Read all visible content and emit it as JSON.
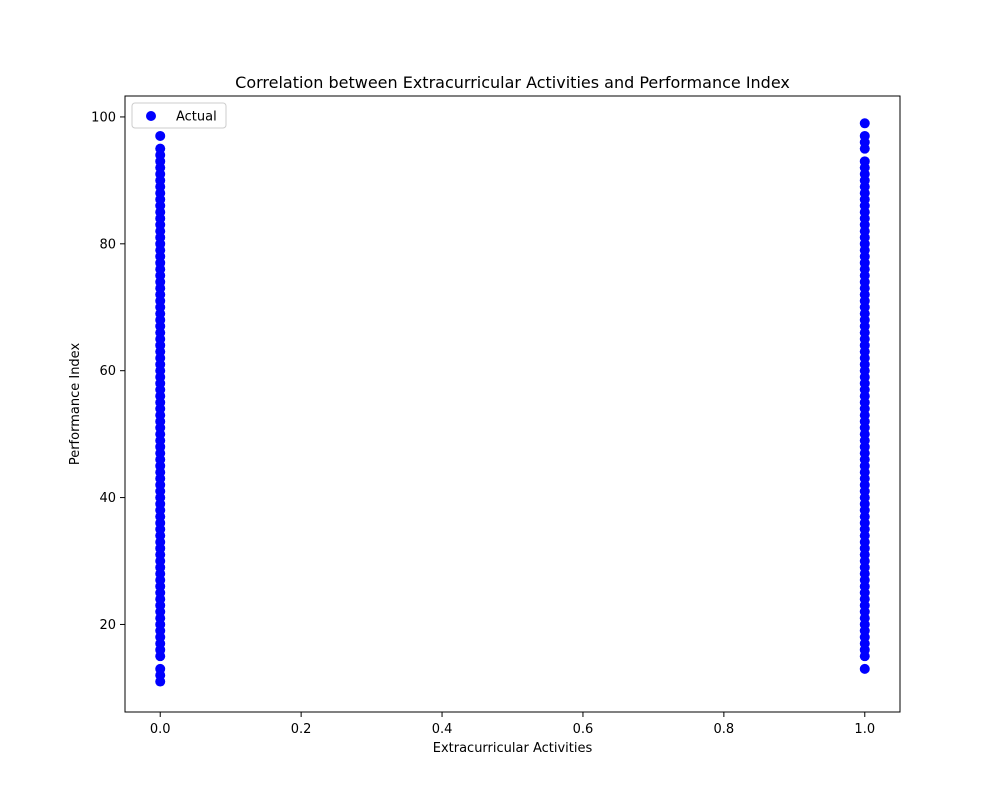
{
  "chart_data": {
    "type": "scatter",
    "title": "Correlation between Extracurricular Activities and Performance Index",
    "xlabel": "Extracurricular Activities",
    "ylabel": "Performance Index",
    "xlim": [
      -0.05,
      1.05
    ],
    "ylim": [
      6.2,
      103.3
    ],
    "xticks": [
      0.0,
      0.2,
      0.4,
      0.6,
      0.8,
      1.0
    ],
    "xtick_labels": [
      "0.0",
      "0.2",
      "0.4",
      "0.6",
      "0.8",
      "1.0"
    ],
    "yticks": [
      20,
      40,
      60,
      80,
      100
    ],
    "ytick_labels": [
      "20",
      "40",
      "60",
      "80",
      "100"
    ],
    "grid": false,
    "legend": {
      "position": "top-left",
      "entries": [
        "Actual"
      ]
    },
    "series": [
      {
        "name": "Actual",
        "color": "#0000ff",
        "points": [
          {
            "x": 0,
            "y": 11
          },
          {
            "x": 0,
            "y": 12
          },
          {
            "x": 0,
            "y": 13
          },
          {
            "x": 0,
            "y": 15
          },
          {
            "x": 0,
            "y": 16
          },
          {
            "x": 0,
            "y": 17
          },
          {
            "x": 0,
            "y": 18
          },
          {
            "x": 0,
            "y": 19
          },
          {
            "x": 0,
            "y": 20
          },
          {
            "x": 0,
            "y": 21
          },
          {
            "x": 0,
            "y": 22
          },
          {
            "x": 0,
            "y": 23
          },
          {
            "x": 0,
            "y": 24
          },
          {
            "x": 0,
            "y": 25
          },
          {
            "x": 0,
            "y": 26
          },
          {
            "x": 0,
            "y": 27
          },
          {
            "x": 0,
            "y": 28
          },
          {
            "x": 0,
            "y": 29
          },
          {
            "x": 0,
            "y": 30
          },
          {
            "x": 0,
            "y": 31
          },
          {
            "x": 0,
            "y": 32
          },
          {
            "x": 0,
            "y": 33
          },
          {
            "x": 0,
            "y": 34
          },
          {
            "x": 0,
            "y": 35
          },
          {
            "x": 0,
            "y": 36
          },
          {
            "x": 0,
            "y": 37
          },
          {
            "x": 0,
            "y": 38
          },
          {
            "x": 0,
            "y": 39
          },
          {
            "x": 0,
            "y": 40
          },
          {
            "x": 0,
            "y": 41
          },
          {
            "x": 0,
            "y": 42
          },
          {
            "x": 0,
            "y": 43
          },
          {
            "x": 0,
            "y": 44
          },
          {
            "x": 0,
            "y": 45
          },
          {
            "x": 0,
            "y": 46
          },
          {
            "x": 0,
            "y": 47
          },
          {
            "x": 0,
            "y": 48
          },
          {
            "x": 0,
            "y": 49
          },
          {
            "x": 0,
            "y": 50
          },
          {
            "x": 0,
            "y": 51
          },
          {
            "x": 0,
            "y": 52
          },
          {
            "x": 0,
            "y": 53
          },
          {
            "x": 0,
            "y": 54
          },
          {
            "x": 0,
            "y": 55
          },
          {
            "x": 0,
            "y": 56
          },
          {
            "x": 0,
            "y": 57
          },
          {
            "x": 0,
            "y": 58
          },
          {
            "x": 0,
            "y": 59
          },
          {
            "x": 0,
            "y": 60
          },
          {
            "x": 0,
            "y": 61
          },
          {
            "x": 0,
            "y": 62
          },
          {
            "x": 0,
            "y": 63
          },
          {
            "x": 0,
            "y": 64
          },
          {
            "x": 0,
            "y": 65
          },
          {
            "x": 0,
            "y": 66
          },
          {
            "x": 0,
            "y": 67
          },
          {
            "x": 0,
            "y": 68
          },
          {
            "x": 0,
            "y": 69
          },
          {
            "x": 0,
            "y": 70
          },
          {
            "x": 0,
            "y": 71
          },
          {
            "x": 0,
            "y": 72
          },
          {
            "x": 0,
            "y": 73
          },
          {
            "x": 0,
            "y": 74
          },
          {
            "x": 0,
            "y": 75
          },
          {
            "x": 0,
            "y": 76
          },
          {
            "x": 0,
            "y": 77
          },
          {
            "x": 0,
            "y": 78
          },
          {
            "x": 0,
            "y": 79
          },
          {
            "x": 0,
            "y": 80
          },
          {
            "x": 0,
            "y": 81
          },
          {
            "x": 0,
            "y": 82
          },
          {
            "x": 0,
            "y": 83
          },
          {
            "x": 0,
            "y": 84
          },
          {
            "x": 0,
            "y": 85
          },
          {
            "x": 0,
            "y": 86
          },
          {
            "x": 0,
            "y": 87
          },
          {
            "x": 0,
            "y": 88
          },
          {
            "x": 0,
            "y": 89
          },
          {
            "x": 0,
            "y": 90
          },
          {
            "x": 0,
            "y": 91
          },
          {
            "x": 0,
            "y": 92
          },
          {
            "x": 0,
            "y": 93
          },
          {
            "x": 0,
            "y": 94
          },
          {
            "x": 0,
            "y": 95
          },
          {
            "x": 0,
            "y": 97
          },
          {
            "x": 1,
            "y": 13
          },
          {
            "x": 1,
            "y": 15
          },
          {
            "x": 1,
            "y": 16
          },
          {
            "x": 1,
            "y": 17
          },
          {
            "x": 1,
            "y": 18
          },
          {
            "x": 1,
            "y": 19
          },
          {
            "x": 1,
            "y": 20
          },
          {
            "x": 1,
            "y": 21
          },
          {
            "x": 1,
            "y": 22
          },
          {
            "x": 1,
            "y": 23
          },
          {
            "x": 1,
            "y": 24
          },
          {
            "x": 1,
            "y": 25
          },
          {
            "x": 1,
            "y": 26
          },
          {
            "x": 1,
            "y": 27
          },
          {
            "x": 1,
            "y": 28
          },
          {
            "x": 1,
            "y": 29
          },
          {
            "x": 1,
            "y": 30
          },
          {
            "x": 1,
            "y": 31
          },
          {
            "x": 1,
            "y": 32
          },
          {
            "x": 1,
            "y": 33
          },
          {
            "x": 1,
            "y": 34
          },
          {
            "x": 1,
            "y": 35
          },
          {
            "x": 1,
            "y": 36
          },
          {
            "x": 1,
            "y": 37
          },
          {
            "x": 1,
            "y": 38
          },
          {
            "x": 1,
            "y": 39
          },
          {
            "x": 1,
            "y": 40
          },
          {
            "x": 1,
            "y": 41
          },
          {
            "x": 1,
            "y": 42
          },
          {
            "x": 1,
            "y": 43
          },
          {
            "x": 1,
            "y": 44
          },
          {
            "x": 1,
            "y": 45
          },
          {
            "x": 1,
            "y": 46
          },
          {
            "x": 1,
            "y": 47
          },
          {
            "x": 1,
            "y": 48
          },
          {
            "x": 1,
            "y": 49
          },
          {
            "x": 1,
            "y": 50
          },
          {
            "x": 1,
            "y": 51
          },
          {
            "x": 1,
            "y": 52
          },
          {
            "x": 1,
            "y": 53
          },
          {
            "x": 1,
            "y": 54
          },
          {
            "x": 1,
            "y": 55
          },
          {
            "x": 1,
            "y": 56
          },
          {
            "x": 1,
            "y": 57
          },
          {
            "x": 1,
            "y": 58
          },
          {
            "x": 1,
            "y": 59
          },
          {
            "x": 1,
            "y": 60
          },
          {
            "x": 1,
            "y": 61
          },
          {
            "x": 1,
            "y": 62
          },
          {
            "x": 1,
            "y": 63
          },
          {
            "x": 1,
            "y": 64
          },
          {
            "x": 1,
            "y": 65
          },
          {
            "x": 1,
            "y": 66
          },
          {
            "x": 1,
            "y": 67
          },
          {
            "x": 1,
            "y": 68
          },
          {
            "x": 1,
            "y": 69
          },
          {
            "x": 1,
            "y": 70
          },
          {
            "x": 1,
            "y": 71
          },
          {
            "x": 1,
            "y": 72
          },
          {
            "x": 1,
            "y": 73
          },
          {
            "x": 1,
            "y": 74
          },
          {
            "x": 1,
            "y": 75
          },
          {
            "x": 1,
            "y": 76
          },
          {
            "x": 1,
            "y": 77
          },
          {
            "x": 1,
            "y": 78
          },
          {
            "x": 1,
            "y": 79
          },
          {
            "x": 1,
            "y": 80
          },
          {
            "x": 1,
            "y": 81
          },
          {
            "x": 1,
            "y": 82
          },
          {
            "x": 1,
            "y": 83
          },
          {
            "x": 1,
            "y": 84
          },
          {
            "x": 1,
            "y": 85
          },
          {
            "x": 1,
            "y": 86
          },
          {
            "x": 1,
            "y": 87
          },
          {
            "x": 1,
            "y": 88
          },
          {
            "x": 1,
            "y": 89
          },
          {
            "x": 1,
            "y": 90
          },
          {
            "x": 1,
            "y": 91
          },
          {
            "x": 1,
            "y": 92
          },
          {
            "x": 1,
            "y": 93
          },
          {
            "x": 1,
            "y": 95
          },
          {
            "x": 1,
            "y": 96
          },
          {
            "x": 1,
            "y": 97
          },
          {
            "x": 1,
            "y": 99
          }
        ]
      }
    ]
  }
}
